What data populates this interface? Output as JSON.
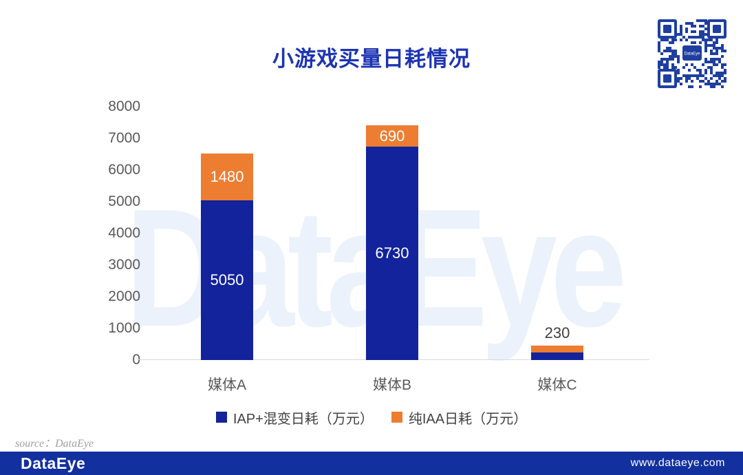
{
  "page": {
    "title": "小游戏买量日耗情况",
    "watermark_text": "DataEye",
    "source_label": "source：DataEye",
    "qr": {
      "center_label": "DataEye"
    },
    "footer": {
      "logo_text": "DataEye",
      "website": "www.dataeye.com"
    }
  },
  "colors": {
    "title_blue": "#1C33B2",
    "bar_blue": "#12239C",
    "bar_orange": "#ED7D31",
    "footer_blue": "#12309E",
    "qr_blue": "#1E3F9F",
    "watermark_blue": "#ECF2FB",
    "axis_text_gray": "#595959",
    "baseline_gray": "#D9D9D9"
  },
  "chart_data": {
    "type": "bar",
    "stacked": true,
    "title": "小游戏买量日耗情况",
    "xlabel": "",
    "ylabel": "",
    "categories": [
      "媒体A",
      "媒体B",
      "媒体C"
    ],
    "series": [
      {
        "name": "IAP+混变日耗（万元）",
        "color": "#12239C",
        "values": [
          5050,
          6730,
          230
        ],
        "inside_labels": [
          "5050",
          "6730",
          ""
        ]
      },
      {
        "name": "纯IAA日耗（万元）",
        "color": "#ED7D31",
        "values": [
          1480,
          690,
          230
        ],
        "inside_labels": [
          "1480",
          "690",
          ""
        ]
      }
    ],
    "above_labels": [
      "",
      "",
      "230"
    ],
    "ylim": [
      0,
      8000
    ],
    "ytick_step": 1000,
    "yticks": [
      0,
      1000,
      2000,
      3000,
      4000,
      5000,
      6000,
      7000,
      8000
    ],
    "grid": "baseline-only",
    "legend_position": "bottom"
  }
}
